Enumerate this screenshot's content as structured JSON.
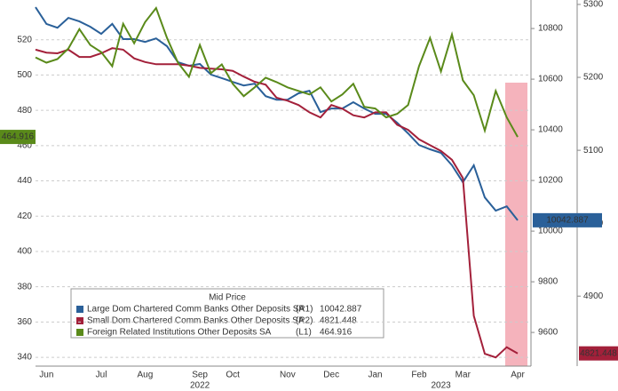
{
  "chart_data": {
    "type": "line",
    "categories": [
      null,
      "Jun",
      null,
      null,
      null,
      null,
      "Jul",
      null,
      null,
      null,
      "Aug",
      null,
      null,
      null,
      null,
      "Sep",
      null,
      null,
      "Oct",
      null,
      null,
      null,
      null,
      "Nov",
      null,
      null,
      null,
      "Dec",
      null,
      null,
      null,
      "Jan",
      null,
      null,
      null,
      "Feb",
      null,
      null,
      null,
      "Mar",
      null,
      null,
      null,
      null,
      "Apr"
    ],
    "x_group_labels": [
      {
        "label": "2022",
        "index": 15
      },
      {
        "label": "2023",
        "index": 37
      }
    ],
    "ylim": [
      335,
      540
    ],
    "yticks": [
      340,
      360,
      380,
      400,
      420,
      440,
      460,
      480,
      500,
      520
    ],
    "y2lim": [
      9467,
      10895
    ],
    "y2ticks": [
      9600,
      9800,
      10000,
      10200,
      10400,
      10600,
      10800
    ],
    "y3lim": [
      4804,
      5300
    ],
    "y3ticks": [
      4900,
      5000,
      5100,
      5200,
      5300
    ],
    "grid": true,
    "legend_title": "Mid Price",
    "series": [
      {
        "name": "Large Dom Chartered Comm Banks Other Deposits SA",
        "legend_suffix": "(R1)",
        "axis": "y2",
        "color": "#2a6099",
        "values": [
          10884,
          10818,
          10803,
          10842,
          10828,
          10807,
          10779,
          10818,
          10758,
          10758,
          10747,
          10761,
          10730,
          10667,
          10653,
          10660,
          10618,
          10604,
          10589,
          10575,
          10582,
          10533,
          10519,
          10519,
          10544,
          10554,
          10470,
          10484,
          10484,
          10509,
          10484,
          10463,
          10463,
          10428,
          10386,
          10340,
          10323,
          10309,
          10260,
          10193,
          10260,
          10133,
          10081,
          10098,
          10042.887
        ]
      },
      {
        "name": "Small Dom Chartered Comm Banks Other Deposits SA",
        "legend_suffix": "(R2)",
        "axis": "y3",
        "color": "#a3203a",
        "values": [
          5238,
          5234,
          5233,
          5238,
          5228,
          5228,
          5233,
          5240,
          5238,
          5226,
          5221,
          5218,
          5218,
          5218,
          5216,
          5213,
          5212,
          5211,
          5209,
          5201,
          5194,
          5190,
          5172,
          5168,
          5162,
          5152,
          5145,
          5162,
          5157,
          5148,
          5145,
          5152,
          5152,
          5135,
          5128,
          5115,
          5107,
          5099,
          5087,
          5062,
          4873,
          4821,
          4816,
          4830,
          4821.448
        ]
      },
      {
        "name": "Foreign Related Institutions Other Deposits SA",
        "legend_suffix": "(L1)",
        "axis": "y",
        "color": "#5a8a1a",
        "values": [
          510,
          507,
          509,
          515,
          526,
          517,
          513,
          505,
          529,
          518,
          530,
          538,
          521,
          507,
          499,
          517,
          501,
          506,
          495,
          488,
          493,
          498.5,
          496,
          493,
          491,
          489,
          493,
          485,
          489,
          495,
          482,
          481,
          476,
          478,
          483,
          505,
          521,
          502,
          523,
          497,
          488.5,
          468.5,
          491,
          476,
          464.916
        ]
      }
    ]
  }
}
